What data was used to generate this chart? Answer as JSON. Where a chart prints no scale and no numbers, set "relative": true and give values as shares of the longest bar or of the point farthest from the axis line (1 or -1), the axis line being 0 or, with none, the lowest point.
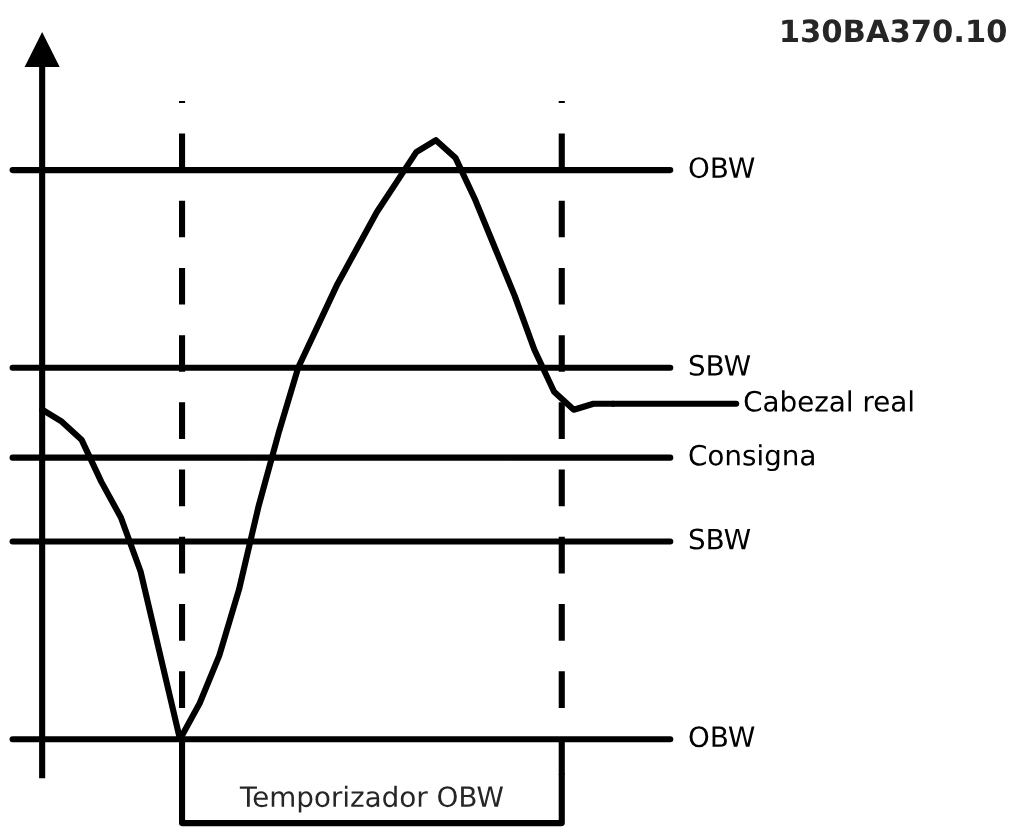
{
  "chart_data": {
    "type": "line",
    "title": "130BA370.10",
    "relative": true,
    "categories": [
      null,
      null,
      null,
      null,
      null,
      null,
      null,
      null,
      null,
      null,
      null,
      null,
      null,
      null,
      null,
      null,
      null,
      null,
      null,
      null,
      null,
      null,
      null,
      null,
      null,
      null,
      null,
      null,
      null,
      null
    ],
    "series": [
      {
        "name": "Cabezal real",
        "color": "#000000",
        "values": [
          0.55,
          0.53,
          0.5,
          0.43,
          0.37,
          0.28,
          0.14,
          0,
          0.06,
          0.14,
          0.25,
          0.39,
          0.51,
          0.62,
          0.69,
          0.76,
          0.82,
          0.88,
          0.93,
          0.98,
          1.0,
          0.97,
          0.9,
          0.82,
          0.74,
          0.65,
          0.58,
          0.55,
          0.56,
          0.56
        ]
      }
    ],
    "ref_lines": [
      {
        "axis": "y",
        "value": 0.95,
        "label": "OBW",
        "color": "#000000",
        "line_style": "solid"
      },
      {
        "axis": "y",
        "value": 0.62,
        "label": "SBW",
        "color": "#000000",
        "line_style": "solid"
      },
      {
        "axis": "y",
        "value": 0.47,
        "label": "Consigna",
        "color": "#000000",
        "line_style": "solid"
      },
      {
        "axis": "y",
        "value": 0.33,
        "label": "SBW",
        "color": "#000000",
        "line_style": "solid"
      },
      {
        "axis": "y",
        "value": 0,
        "label": "OBW",
        "color": "#000000",
        "line_style": "solid"
      }
    ],
    "annotations": [
      "Temporizador OBW"
    ],
    "legend": "right",
    "marker": "none",
    "line_style": "solid"
  }
}
